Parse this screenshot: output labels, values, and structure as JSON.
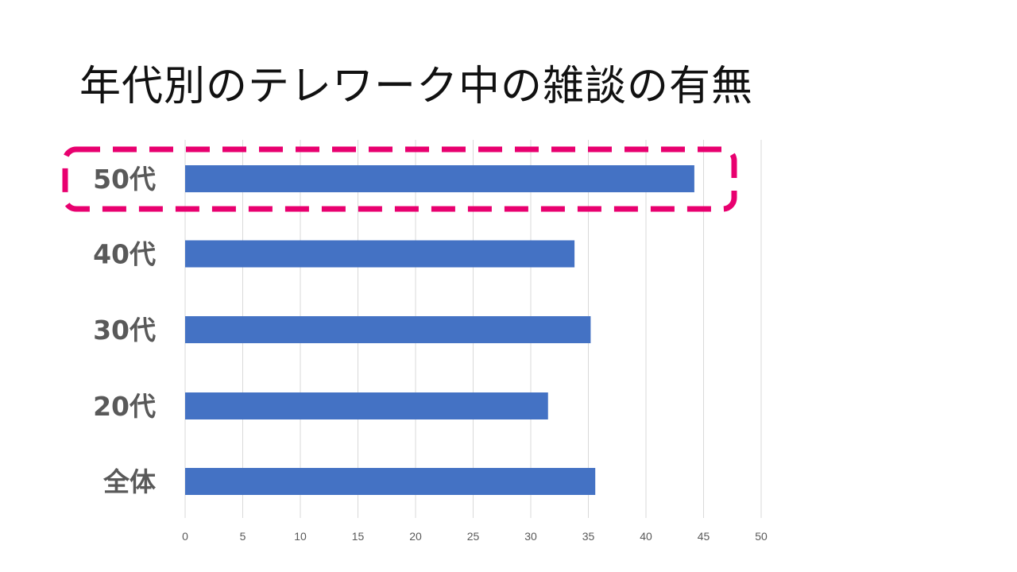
{
  "title": "年代別のテレワーク中の雑談の有無",
  "colors": {
    "bar": "#4472c4",
    "grid": "#d9d9d9",
    "highlight": "#e8006f",
    "label": "#595959"
  },
  "chart_data": {
    "type": "bar",
    "orientation": "horizontal",
    "categories": [
      "50代",
      "40代",
      "30代",
      "20代",
      "全体"
    ],
    "values": [
      44.2,
      33.8,
      35.2,
      31.5,
      35.6
    ],
    "xlim": [
      0,
      50
    ],
    "xticks": [
      "0",
      "5",
      "10",
      "15",
      "20",
      "25",
      "30",
      "35",
      "40",
      "45",
      "50"
    ],
    "grid": true,
    "legend": false,
    "highlight_category": "50代",
    "highlight_style": "dashed-rounded-box"
  }
}
